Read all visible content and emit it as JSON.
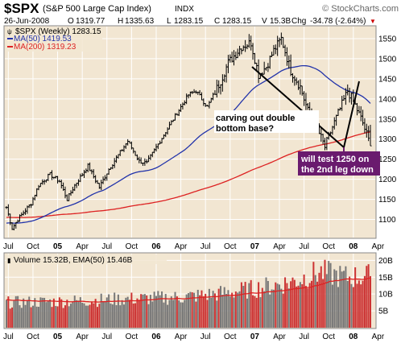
{
  "header": {
    "ticker": "$SPX",
    "name": "(S&P 500 Large Cap Index)",
    "exchange": "INDX",
    "watermark": "© StockCharts.com",
    "date": "26-Jun-2008",
    "open_label": "O",
    "open": "1319.77",
    "high_label": "H",
    "high": "1335.63",
    "low_label": "L",
    "low": "1283.15",
    "close_label": "C",
    "close": "1283.15",
    "volume_label": "V",
    "volume": "15.3B",
    "change_label": "Chg",
    "change": "-34.78 (-2.64%)",
    "change_arrow": "▼"
  },
  "legend": {
    "price": "$SPX (Weekly) 1283.15",
    "ma50": "MA(50) 1419.53",
    "ma200": "MA(200) 1319.23",
    "volume": "Volume 15.32B, EMA(50) 15.46B"
  },
  "annotations": [
    {
      "text_lines": [
        "carving out double",
        "bottom base?"
      ],
      "color": "#000000"
    },
    {
      "text_lines": [
        "will test 1250 on",
        "the 2nd leg down"
      ],
      "color": "#ffffff",
      "bg": "#6a1b6e"
    }
  ],
  "colors": {
    "panel_bg": "#f2e6d2",
    "bars": "#000000",
    "ma50": "#2233aa",
    "ma200": "#dd2222",
    "volume_bars": "#999999",
    "volume_up": "#777777",
    "volume_down": "#cc3333",
    "ema": "#dd2222",
    "grid": "#ffffff"
  },
  "chart_data": [
    {
      "type": "ohlc",
      "period": "weekly",
      "x_ticks": [
        "Jul",
        "Oct",
        "05",
        "Apr",
        "Jul",
        "Oct",
        "06",
        "Apr",
        "Jul",
        "Oct",
        "07",
        "Apr",
        "Jul",
        "Oct",
        "08",
        "Apr"
      ],
      "y_ticks": [
        1100,
        1150,
        1200,
        1250,
        1300,
        1350,
        1400,
        1450,
        1500,
        1550
      ],
      "ylim": [
        1055,
        1580
      ],
      "series": [
        {
          "name": "$SPX",
          "start": "2004-06-25",
          "end": "2008-06-26",
          "keypoints": [
            [
              0,
              1130
            ],
            [
              3,
              1078
            ],
            [
              6,
              1100
            ],
            [
              13,
              1140
            ],
            [
              17,
              1185
            ],
            [
              23,
              1212
            ],
            [
              28,
              1195
            ],
            [
              32,
              1150
            ],
            [
              36,
              1185
            ],
            [
              43,
              1233
            ],
            [
              49,
              1180
            ],
            [
              54,
              1225
            ],
            [
              60,
              1267
            ],
            [
              64,
              1295
            ],
            [
              70,
              1245
            ],
            [
              74,
              1240
            ],
            [
              81,
              1295
            ],
            [
              90,
              1365
            ],
            [
              96,
              1410
            ],
            [
              100,
              1420
            ],
            [
              106,
              1380
            ],
            [
              113,
              1445
            ],
            [
              117,
              1490
            ],
            [
              124,
              1530
            ],
            [
              129,
              1540
            ],
            [
              133,
              1460
            ],
            [
              137,
              1480
            ],
            [
              141,
              1520
            ],
            [
              145,
              1550
            ],
            [
              150,
              1470
            ],
            [
              155,
              1430
            ],
            [
              159,
              1370
            ],
            [
              164,
              1325
            ],
            [
              168,
              1280
            ],
            [
              172,
              1330
            ],
            [
              180,
              1420
            ],
            [
              183,
              1395
            ],
            [
              188,
              1340
            ],
            [
              192,
              1283
            ]
          ],
          "last": {
            "open": 1319.77,
            "high": 1335.63,
            "low": 1283.15,
            "close": 1283.15
          }
        },
        {
          "name": "MA(50)",
          "last": 1419.53
        },
        {
          "name": "MA(200)",
          "last": 1319.23
        }
      ]
    },
    {
      "type": "bar",
      "panel": "volume",
      "y_ticks": [
        "5B",
        "10B",
        "15B",
        "20B"
      ],
      "ylim": [
        0,
        22
      ],
      "series": [
        {
          "name": "Volume",
          "unit": "B",
          "keypoints": [
            [
              0,
              7.5
            ],
            [
              30,
              7.8
            ],
            [
              60,
              8.5
            ],
            [
              90,
              9.0
            ],
            [
              110,
              10.0
            ],
            [
              130,
              11.5
            ],
            [
              150,
              13.5
            ],
            [
              165,
              16.5
            ],
            [
              180,
              15.0
            ],
            [
              192,
              15.32
            ]
          ]
        },
        {
          "name": "EMA(50)",
          "unit": "B",
          "last": 15.46
        }
      ]
    }
  ]
}
